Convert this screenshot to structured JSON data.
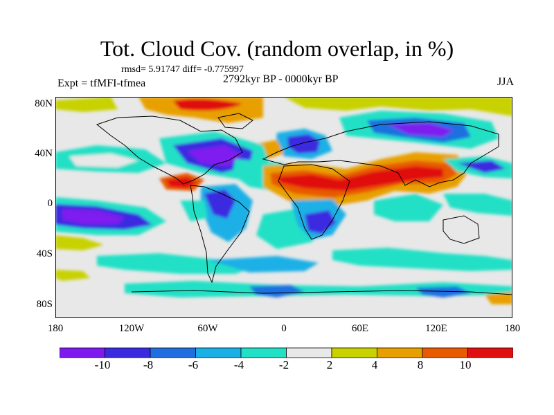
{
  "title": "Tot. Cloud Cov. (random overlap, in %)",
  "stats": "rmsd= 5.91747 diff= -0.775997",
  "expt": "Expt = tfMFI-tfmea",
  "period": "2792kyr BP - 0000kyr BP",
  "season": "JJA",
  "axes": {
    "lat_ticks": [
      "80N",
      "40N",
      "0",
      "40S",
      "80S"
    ],
    "lon_ticks": [
      "180",
      "120W",
      "60W",
      "0",
      "60E",
      "120E",
      "180"
    ]
  },
  "colorbar": {
    "labels": [
      "-10",
      "-8",
      "-6",
      "-4",
      "-2",
      "2",
      "4",
      "8",
      "10"
    ],
    "colors": [
      "#7f1aef",
      "#3a2be0",
      "#1f6fe0",
      "#1ab0e6",
      "#22e0c6",
      "#e8e8e8",
      "#c8d200",
      "#e8a000",
      "#e85a00",
      "#e01010"
    ]
  },
  "chart_data": {
    "type": "heatmap",
    "title": "Tot. Cloud Cov. (random overlap, in %)",
    "x_range": [
      -180,
      180
    ],
    "y_range": [
      -90,
      90
    ],
    "levels": [
      -10,
      -8,
      -6,
      -4,
      -2,
      2,
      4,
      8,
      10
    ],
    "rmsd": 5.91747,
    "diff": -0.775997
  }
}
